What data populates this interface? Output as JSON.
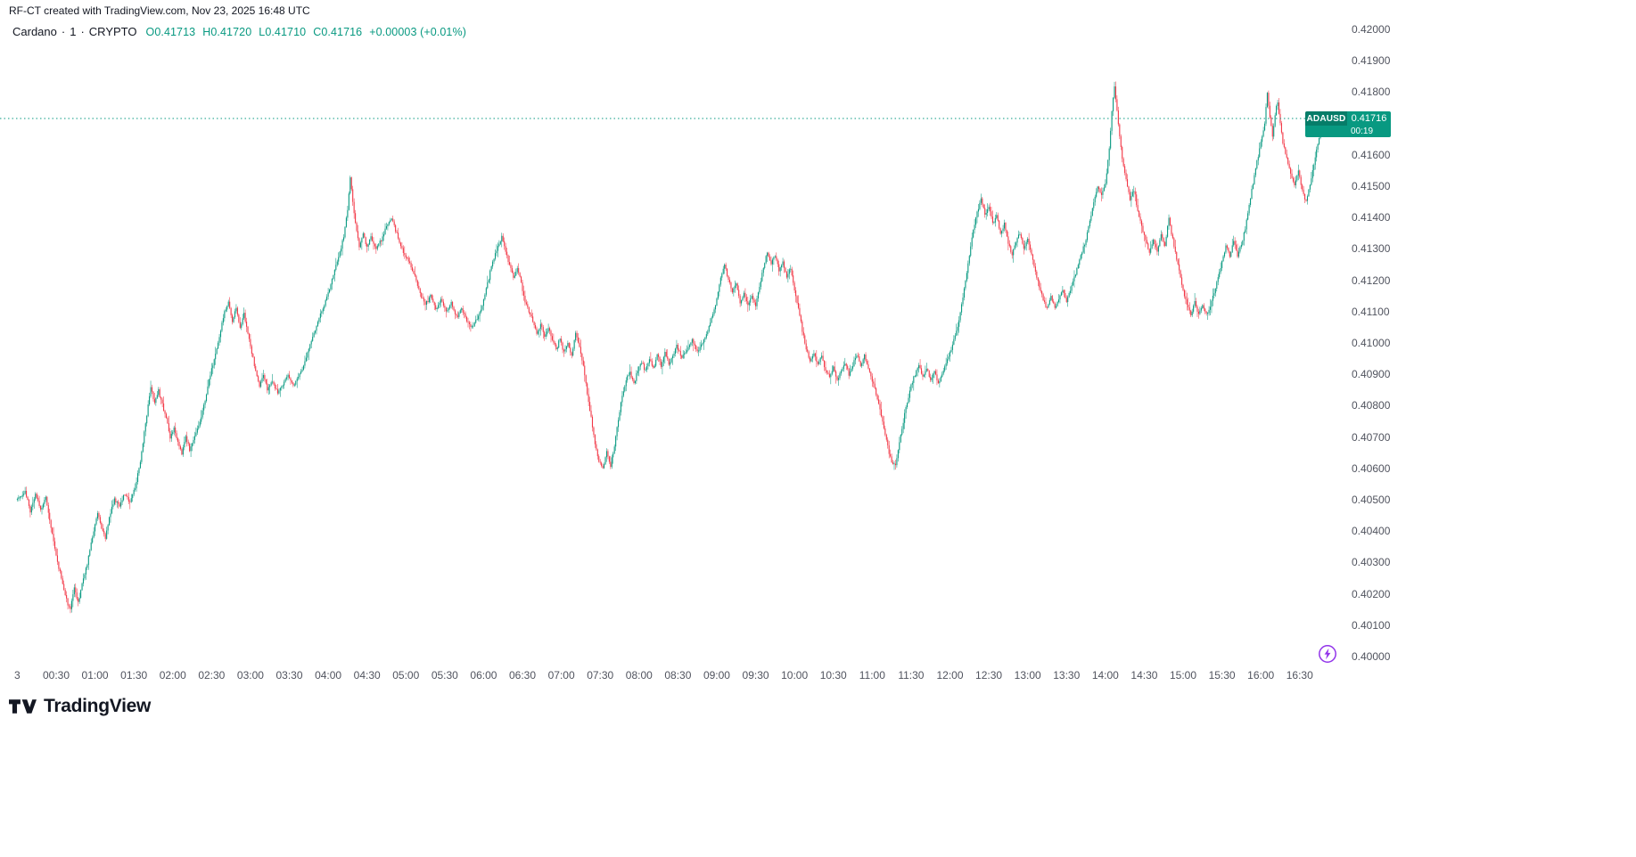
{
  "attribution": "RF-CT created with TradingView.com, Nov 23, 2025 16:48 UTC",
  "legend": {
    "symbol": "Cardano",
    "separator": "·",
    "interval": "1",
    "exchange": "CRYPTO",
    "ohlc": [
      {
        "label": "O",
        "value": "0.41713"
      },
      {
        "label": "H",
        "value": "0.41720"
      },
      {
        "label": "L",
        "value": "0.41710"
      },
      {
        "label": "C",
        "value": "0.41716"
      }
    ],
    "change": "+0.00003 (+0.01%)"
  },
  "price_label": {
    "symbol": "ADAUSD",
    "price": "0.41716",
    "countdown": "00:19"
  },
  "logo_text": "TradingView",
  "colors": {
    "up": "#089981",
    "down": "#f23645",
    "text": "#131722",
    "axis_text": "#50535e",
    "flash": "#9234ea",
    "background": "#ffffff"
  },
  "chart_data": {
    "type": "candlestick",
    "title": "Cardano",
    "symbol": "ADAUSD",
    "exchange": "CRYPTO",
    "interval_minutes": 1,
    "date": "Nov 23, 2025",
    "session_end_time": "16:48 UTC",
    "current_price": 0.41716,
    "last_candle": {
      "open": 0.41713,
      "high": 0.4172,
      "low": 0.4171,
      "close": 0.41716,
      "change": "+0.00003",
      "change_pct": "+0.01%"
    },
    "y_axis": {
      "min": 0.4,
      "max": 0.42,
      "tick": 0.001,
      "labels": [
        "0.42000",
        "0.41900",
        "0.41800",
        "0.41700",
        "0.41600",
        "0.41500",
        "0.41400",
        "0.41300",
        "0.41200",
        "0.41100",
        "0.41000",
        "0.40900",
        "0.40800",
        "0.40700",
        "0.40600",
        "0.40500",
        "0.40400",
        "0.40300",
        "0.40200",
        "0.40100",
        "0.40000"
      ]
    },
    "x_axis": {
      "labels": [
        "3",
        "00:30",
        "01:00",
        "01:30",
        "02:00",
        "02:30",
        "03:00",
        "03:30",
        "04:00",
        "04:30",
        "05:00",
        "05:30",
        "06:00",
        "06:30",
        "07:00",
        "07:30",
        "08:00",
        "08:30",
        "09:00",
        "09:30",
        "10:00",
        "10:30",
        "11:00",
        "11:30",
        "12:00",
        "12:30",
        "13:00",
        "13:30",
        "14:00",
        "14:30",
        "15:00",
        "15:30",
        "16:00",
        "16:30"
      ],
      "label_minutes": [
        0,
        30,
        60,
        90,
        120,
        150,
        180,
        210,
        240,
        270,
        300,
        330,
        360,
        390,
        420,
        450,
        480,
        510,
        540,
        570,
        600,
        630,
        660,
        690,
        720,
        750,
        780,
        810,
        840,
        870,
        900,
        930,
        960,
        990
      ]
    },
    "grid": false,
    "legend_position": "top-left",
    "price_path": [
      [
        0,
        0.405
      ],
      [
        6,
        0.4053
      ],
      [
        10,
        0.4046
      ],
      [
        14,
        0.4052
      ],
      [
        18,
        0.4047
      ],
      [
        22,
        0.4051
      ],
      [
        26,
        0.4041
      ],
      [
        30,
        0.4032
      ],
      [
        34,
        0.4025
      ],
      [
        38,
        0.4018
      ],
      [
        41,
        0.4015
      ],
      [
        44,
        0.4022
      ],
      [
        47,
        0.4017
      ],
      [
        50,
        0.4023
      ],
      [
        54,
        0.403
      ],
      [
        58,
        0.4038
      ],
      [
        62,
        0.4046
      ],
      [
        65,
        0.4041
      ],
      [
        68,
        0.4038
      ],
      [
        71,
        0.4044
      ],
      [
        75,
        0.405
      ],
      [
        79,
        0.4048
      ],
      [
        83,
        0.4052
      ],
      [
        87,
        0.4049
      ],
      [
        91,
        0.4054
      ],
      [
        94,
        0.406
      ],
      [
        97,
        0.4068
      ],
      [
        100,
        0.4077
      ],
      [
        103,
        0.4086
      ],
      [
        106,
        0.4081
      ],
      [
        109,
        0.4085
      ],
      [
        112,
        0.408
      ],
      [
        115,
        0.4076
      ],
      [
        118,
        0.407
      ],
      [
        121,
        0.4073
      ],
      [
        124,
        0.4068
      ],
      [
        127,
        0.4065
      ],
      [
        130,
        0.407
      ],
      [
        133,
        0.4066
      ],
      [
        137,
        0.407
      ],
      [
        141,
        0.4075
      ],
      [
        145,
        0.4082
      ],
      [
        149,
        0.409
      ],
      [
        153,
        0.4096
      ],
      [
        157,
        0.4104
      ],
      [
        160,
        0.411
      ],
      [
        163,
        0.4113
      ],
      [
        166,
        0.4107
      ],
      [
        169,
        0.4111
      ],
      [
        172,
        0.4105
      ],
      [
        175,
        0.4109
      ],
      [
        178,
        0.4103
      ],
      [
        181,
        0.4097
      ],
      [
        184,
        0.4091
      ],
      [
        187,
        0.4086
      ],
      [
        190,
        0.409
      ],
      [
        193,
        0.4085
      ],
      [
        197,
        0.4088
      ],
      [
        201,
        0.4084
      ],
      [
        205,
        0.4087
      ],
      [
        209,
        0.409
      ],
      [
        213,
        0.4086
      ],
      [
        217,
        0.4089
      ],
      [
        221,
        0.4093
      ],
      [
        225,
        0.4098
      ],
      [
        229,
        0.4103
      ],
      [
        233,
        0.4108
      ],
      [
        237,
        0.4112
      ],
      [
        241,
        0.4117
      ],
      [
        245,
        0.4123
      ],
      [
        249,
        0.4129
      ],
      [
        252,
        0.4134
      ],
      [
        255,
        0.4143
      ],
      [
        257,
        0.4153
      ],
      [
        259,
        0.4145
      ],
      [
        261,
        0.4138
      ],
      [
        264,
        0.4131
      ],
      [
        267,
        0.4135
      ],
      [
        270,
        0.413
      ],
      [
        273,
        0.4134
      ],
      [
        277,
        0.413
      ],
      [
        281,
        0.4133
      ],
      [
        285,
        0.4137
      ],
      [
        289,
        0.414
      ],
      [
        292,
        0.4136
      ],
      [
        295,
        0.4132
      ],
      [
        299,
        0.4128
      ],
      [
        303,
        0.4125
      ],
      [
        307,
        0.4121
      ],
      [
        311,
        0.4116
      ],
      [
        315,
        0.4112
      ],
      [
        319,
        0.4115
      ],
      [
        323,
        0.4111
      ],
      [
        327,
        0.4114
      ],
      [
        331,
        0.411
      ],
      [
        335,
        0.4113
      ],
      [
        339,
        0.4108
      ],
      [
        343,
        0.4111
      ],
      [
        347,
        0.4107
      ],
      [
        351,
        0.4105
      ],
      [
        355,
        0.4108
      ],
      [
        359,
        0.4112
      ],
      [
        363,
        0.4119
      ],
      [
        367,
        0.4126
      ],
      [
        371,
        0.4131
      ],
      [
        374,
        0.4134
      ],
      [
        377,
        0.4129
      ],
      [
        380,
        0.4125
      ],
      [
        383,
        0.4121
      ],
      [
        386,
        0.4124
      ],
      [
        389,
        0.4119
      ],
      [
        392,
        0.4113
      ],
      [
        395,
        0.411
      ],
      [
        398,
        0.4107
      ],
      [
        401,
        0.4103
      ],
      [
        404,
        0.4106
      ],
      [
        407,
        0.4102
      ],
      [
        410,
        0.4105
      ],
      [
        413,
        0.4101
      ],
      [
        416,
        0.4098
      ],
      [
        419,
        0.4101
      ],
      [
        422,
        0.4097
      ],
      [
        425,
        0.41
      ],
      [
        428,
        0.4096
      ],
      [
        431,
        0.4103
      ],
      [
        434,
        0.4099
      ],
      [
        437,
        0.4093
      ],
      [
        440,
        0.4084
      ],
      [
        443,
        0.4076
      ],
      [
        446,
        0.4068
      ],
      [
        449,
        0.4062
      ],
      [
        452,
        0.406
      ],
      [
        455,
        0.4065
      ],
      [
        458,
        0.4061
      ],
      [
        461,
        0.4067
      ],
      [
        464,
        0.4076
      ],
      [
        467,
        0.4083
      ],
      [
        470,
        0.4088
      ],
      [
        473,
        0.4091
      ],
      [
        476,
        0.4087
      ],
      [
        479,
        0.4091
      ],
      [
        482,
        0.4094
      ],
      [
        485,
        0.4091
      ],
      [
        488,
        0.4095
      ],
      [
        491,
        0.4092
      ],
      [
        494,
        0.4096
      ],
      [
        497,
        0.4093
      ],
      [
        500,
        0.4097
      ],
      [
        503,
        0.4093
      ],
      [
        506,
        0.4096
      ],
      [
        509,
        0.4099
      ],
      [
        513,
        0.4095
      ],
      [
        517,
        0.4098
      ],
      [
        521,
        0.4101
      ],
      [
        525,
        0.4097
      ],
      [
        529,
        0.41
      ],
      [
        533,
        0.4104
      ],
      [
        537,
        0.4109
      ],
      [
        540,
        0.4114
      ],
      [
        543,
        0.4121
      ],
      [
        546,
        0.4125
      ],
      [
        549,
        0.412
      ],
      [
        552,
        0.4116
      ],
      [
        555,
        0.4119
      ],
      [
        558,
        0.4113
      ],
      [
        561,
        0.4116
      ],
      [
        564,
        0.4112
      ],
      [
        567,
        0.4115
      ],
      [
        570,
        0.4112
      ],
      [
        573,
        0.4118
      ],
      [
        576,
        0.4124
      ],
      [
        579,
        0.4129
      ],
      [
        582,
        0.4125
      ],
      [
        585,
        0.4128
      ],
      [
        588,
        0.4123
      ],
      [
        591,
        0.4126
      ],
      [
        594,
        0.4121
      ],
      [
        597,
        0.4124
      ],
      [
        600,
        0.4117
      ],
      [
        603,
        0.4111
      ],
      [
        606,
        0.4104
      ],
      [
        609,
        0.4098
      ],
      [
        612,
        0.4094
      ],
      [
        615,
        0.4097
      ],
      [
        618,
        0.4093
      ],
      [
        621,
        0.4096
      ],
      [
        624,
        0.4091
      ],
      [
        627,
        0.4089
      ],
      [
        630,
        0.4092
      ],
      [
        633,
        0.4088
      ],
      [
        636,
        0.4091
      ],
      [
        639,
        0.4094
      ],
      [
        642,
        0.409
      ],
      [
        645,
        0.4093
      ],
      [
        648,
        0.4096
      ],
      [
        651,
        0.4093
      ],
      [
        654,
        0.4096
      ],
      [
        657,
        0.4092
      ],
      [
        660,
        0.4088
      ],
      [
        663,
        0.4084
      ],
      [
        666,
        0.4079
      ],
      [
        669,
        0.4073
      ],
      [
        672,
        0.4067
      ],
      [
        675,
        0.4062
      ],
      [
        678,
        0.4061
      ],
      [
        681,
        0.4068
      ],
      [
        684,
        0.4075
      ],
      [
        687,
        0.4081
      ],
      [
        690,
        0.4086
      ],
      [
        693,
        0.409
      ],
      [
        696,
        0.4093
      ],
      [
        699,
        0.4089
      ],
      [
        702,
        0.4092
      ],
      [
        705,
        0.4088
      ],
      [
        708,
        0.4091
      ],
      [
        711,
        0.4087
      ],
      [
        714,
        0.409
      ],
      [
        717,
        0.4094
      ],
      [
        720,
        0.4097
      ],
      [
        723,
        0.4101
      ],
      [
        726,
        0.4105
      ],
      [
        729,
        0.4112
      ],
      [
        732,
        0.412
      ],
      [
        735,
        0.4128
      ],
      [
        738,
        0.4136
      ],
      [
        741,
        0.4142
      ],
      [
        744,
        0.4146
      ],
      [
        747,
        0.4141
      ],
      [
        750,
        0.4144
      ],
      [
        753,
        0.4138
      ],
      [
        756,
        0.4141
      ],
      [
        759,
        0.4135
      ],
      [
        762,
        0.4138
      ],
      [
        765,
        0.4132
      ],
      [
        768,
        0.4128
      ],
      [
        771,
        0.4132
      ],
      [
        774,
        0.4135
      ],
      [
        777,
        0.413
      ],
      [
        780,
        0.4133
      ],
      [
        783,
        0.4128
      ],
      [
        786,
        0.4123
      ],
      [
        789,
        0.4118
      ],
      [
        792,
        0.4114
      ],
      [
        795,
        0.4111
      ],
      [
        798,
        0.4115
      ],
      [
        801,
        0.4111
      ],
      [
        804,
        0.4114
      ],
      [
        807,
        0.4117
      ],
      [
        810,
        0.4113
      ],
      [
        813,
        0.4117
      ],
      [
        816,
        0.4121
      ],
      [
        819,
        0.4125
      ],
      [
        822,
        0.4129
      ],
      [
        825,
        0.4133
      ],
      [
        828,
        0.4139
      ],
      [
        831,
        0.4145
      ],
      [
        834,
        0.415
      ],
      [
        837,
        0.4147
      ],
      [
        840,
        0.4151
      ],
      [
        843,
        0.4162
      ],
      [
        845,
        0.4174
      ],
      [
        847,
        0.4182
      ],
      [
        849,
        0.4174
      ],
      [
        851,
        0.4166
      ],
      [
        853,
        0.4159
      ],
      [
        856,
        0.4152
      ],
      [
        859,
        0.4146
      ],
      [
        862,
        0.4149
      ],
      [
        865,
        0.4142
      ],
      [
        868,
        0.4137
      ],
      [
        871,
        0.4133
      ],
      [
        874,
        0.4129
      ],
      [
        877,
        0.4133
      ],
      [
        880,
        0.4129
      ],
      [
        883,
        0.4135
      ],
      [
        886,
        0.4131
      ],
      [
        889,
        0.414
      ],
      [
        891,
        0.4135
      ],
      [
        894,
        0.4129
      ],
      [
        897,
        0.4123
      ],
      [
        900,
        0.4117
      ],
      [
        903,
        0.4112
      ],
      [
        906,
        0.4109
      ],
      [
        909,
        0.4113
      ],
      [
        912,
        0.4109
      ],
      [
        915,
        0.4112
      ],
      [
        918,
        0.4109
      ],
      [
        921,
        0.4112
      ],
      [
        924,
        0.4116
      ],
      [
        927,
        0.4121
      ],
      [
        930,
        0.4126
      ],
      [
        933,
        0.4131
      ],
      [
        936,
        0.4128
      ],
      [
        939,
        0.4133
      ],
      [
        942,
        0.4128
      ],
      [
        945,
        0.4131
      ],
      [
        948,
        0.4137
      ],
      [
        951,
        0.4144
      ],
      [
        954,
        0.4151
      ],
      [
        957,
        0.4158
      ],
      [
        960,
        0.4164
      ],
      [
        963,
        0.417
      ],
      [
        965,
        0.418
      ],
      [
        967,
        0.4172
      ],
      [
        969,
        0.4166
      ],
      [
        971,
        0.4173
      ],
      [
        973,
        0.4177
      ],
      [
        975,
        0.417
      ],
      [
        977,
        0.4164
      ],
      [
        980,
        0.4159
      ],
      [
        983,
        0.4154
      ],
      [
        986,
        0.415
      ],
      [
        989,
        0.4155
      ],
      [
        992,
        0.4149
      ],
      [
        995,
        0.4145
      ],
      [
        998,
        0.4151
      ],
      [
        1001,
        0.4157
      ],
      [
        1004,
        0.4163
      ],
      [
        1006,
        0.4168
      ],
      [
        1008,
        0.4172
      ]
    ]
  }
}
